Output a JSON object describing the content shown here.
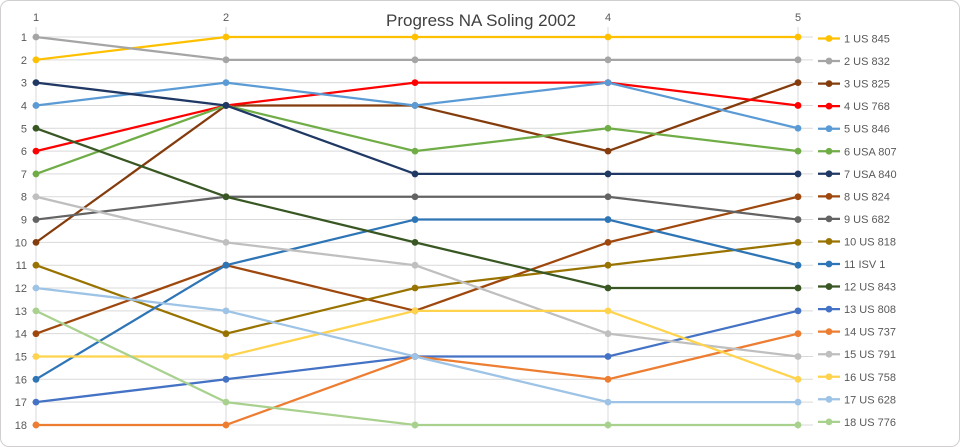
{
  "window": {
    "background": "#FFFFFF",
    "border_color": "#D0CECE"
  },
  "text_colors": {
    "title": "#404040",
    "axis_labels": "#595959",
    "gridline": "#D9D9D9"
  },
  "chart_data": {
    "type": "line",
    "title": "Progress NA Soling 2002",
    "x": [
      1,
      2,
      3,
      4,
      5
    ],
    "x_axis": {
      "position": "top",
      "visible_ticks": [
        {
          "label": "1",
          "x": 1
        },
        {
          "label": "2",
          "x": 2
        },
        {
          "label": "4",
          "x": 4
        },
        {
          "label": "5",
          "x": 5
        }
      ]
    },
    "y_axis": {
      "min": 1,
      "max": 18,
      "inverted": true,
      "tick_labels": [
        "1",
        "2",
        "3",
        "4",
        "5",
        "6",
        "7",
        "8",
        "9",
        "10",
        "11",
        "12",
        "13",
        "14",
        "15",
        "16",
        "17",
        "18"
      ]
    },
    "grid": true,
    "legend_position": "right",
    "series": [
      {
        "name": "1 US 845",
        "color": "#FFC000",
        "values": [
          2,
          1,
          1,
          1,
          1
        ]
      },
      {
        "name": "2 US 832",
        "color": "#A5A5A5",
        "values": [
          1,
          2,
          2,
          2,
          2
        ]
      },
      {
        "name": "3 US 825",
        "color": "#843C0C",
        "values": [
          10,
          4,
          4,
          6,
          3
        ]
      },
      {
        "name": "4 US 768",
        "color": "#FF0000",
        "values": [
          6,
          4,
          3,
          3,
          4
        ]
      },
      {
        "name": "5 US 846",
        "color": "#5B9BD5",
        "values": [
          4,
          3,
          4,
          3,
          5
        ]
      },
      {
        "name": "6 USA 807",
        "color": "#70AD47",
        "values": [
          7,
          4,
          6,
          5,
          6
        ]
      },
      {
        "name": "7 USA 840",
        "color": "#1F3864",
        "values": [
          3,
          4,
          7,
          7,
          7
        ]
      },
      {
        "name": "8 US 824",
        "color": "#9E480E",
        "values": [
          14,
          11,
          13,
          10,
          8
        ]
      },
      {
        "name": "9 US 682",
        "color": "#636363",
        "values": [
          9,
          8,
          8,
          8,
          9
        ]
      },
      {
        "name": "10 US 818",
        "color": "#997300",
        "values": [
          11,
          14,
          12,
          11,
          10
        ]
      },
      {
        "name": "11 ISV 1",
        "color": "#2E75B6",
        "values": [
          16,
          11,
          9,
          9,
          11
        ]
      },
      {
        "name": "12 US 843",
        "color": "#385723",
        "values": [
          5,
          8,
          10,
          12,
          12
        ]
      },
      {
        "name": "13 US 808",
        "color": "#4472C4",
        "values": [
          17,
          16,
          15,
          15,
          13
        ]
      },
      {
        "name": "14 US 737",
        "color": "#ED7D31",
        "values": [
          18,
          18,
          15,
          16,
          14
        ]
      },
      {
        "name": "15 US 791",
        "color": "#BFBFBF",
        "values": [
          8,
          10,
          11,
          14,
          15
        ]
      },
      {
        "name": "16 US 758",
        "color": "#FFD34D",
        "values": [
          15,
          15,
          13,
          13,
          16
        ]
      },
      {
        "name": "17 US 628",
        "color": "#9DC3E6",
        "values": [
          12,
          13,
          15,
          17,
          17
        ]
      },
      {
        "name": "18 US 776",
        "color": "#A9D18E",
        "values": [
          13,
          17,
          18,
          18,
          18
        ]
      }
    ]
  }
}
